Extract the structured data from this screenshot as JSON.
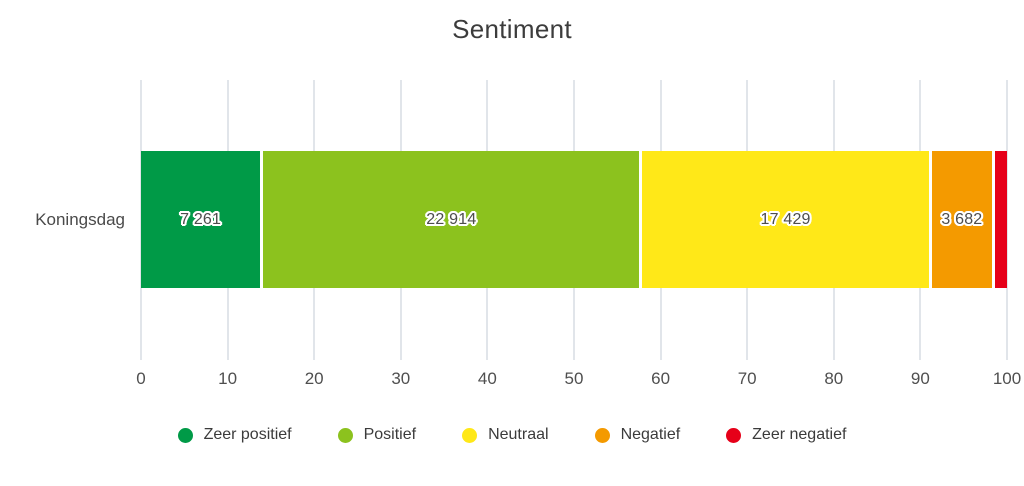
{
  "chart_data": {
    "type": "bar",
    "orientation": "horizontal",
    "stacked": true,
    "title": "Sentiment",
    "category": "Koningsdag",
    "xlabel": "",
    "ylabel": "",
    "xlim": [
      0,
      100
    ],
    "x_ticks": [
      0,
      10,
      20,
      30,
      40,
      50,
      60,
      70,
      80,
      90,
      100
    ],
    "grid": true,
    "legend_position": "bottom",
    "series": [
      {
        "name": "Zeer positief",
        "color": "#009A47",
        "value": 7261,
        "label": "7 261",
        "percent": 13.96
      },
      {
        "name": "Positief",
        "color": "#8CC21E",
        "value": 22914,
        "label": "22 914",
        "percent": 44.06
      },
      {
        "name": "Neutraal",
        "color": "#FFE818",
        "value": 17429,
        "label": "17 429",
        "percent": 33.51
      },
      {
        "name": "Negatief",
        "color": "#F49A00",
        "value": 3682,
        "label": "3 682",
        "percent": 7.08
      },
      {
        "name": "Zeer negatief",
        "color": "#E60019",
        "value": null,
        "label": "",
        "percent": 1.39
      }
    ]
  }
}
